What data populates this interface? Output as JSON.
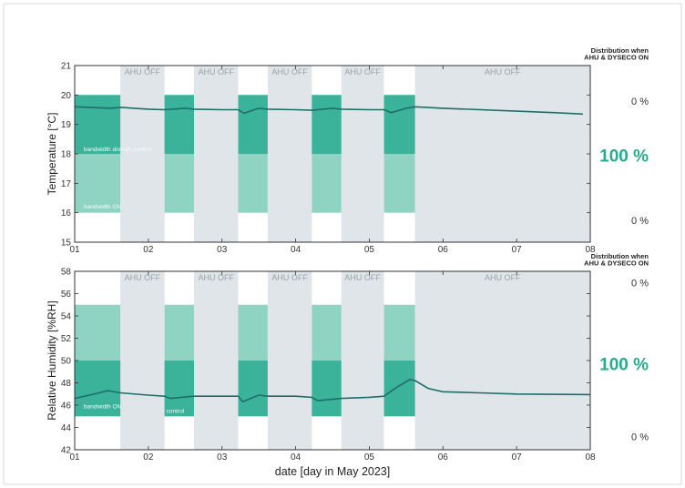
{
  "xlabel": "date [day in May 2023]",
  "chart_data": [
    {
      "type": "line",
      "ylabel": "Temperature [°C]",
      "xlim": [
        1,
        8
      ],
      "ylim": [
        15,
        21
      ],
      "x_ticks": [
        "01",
        "02",
        "03",
        "04",
        "05",
        "06",
        "07",
        "08"
      ],
      "y_ticks": [
        "15",
        "16",
        "17",
        "18",
        "19",
        "20",
        "21"
      ],
      "ahu_off_label": "AHU OFF",
      "ahu_off_periods": [
        [
          1.62,
          2.22
        ],
        [
          2.62,
          3.22
        ],
        [
          3.62,
          4.22
        ],
        [
          4.62,
          5.2
        ],
        [
          5.62,
          8.0
        ]
      ],
      "control_bands": {
        "outer": [
          16,
          20
        ],
        "inner": [
          18,
          20
        ],
        "periods": [
          [
            1.0,
            1.62
          ],
          [
            2.22,
            2.62
          ],
          [
            3.22,
            3.62
          ],
          [
            4.22,
            4.62
          ],
          [
            5.2,
            5.62
          ]
        ]
      },
      "band_labels": [
        {
          "text": "bandwidth domain control",
          "y": 18.1
        },
        {
          "text": "bandwidth ON",
          "y": 16.15
        }
      ],
      "distribution_title": [
        "Distribution when",
        "AHU & DYSECO ON"
      ],
      "distribution_values": [
        {
          "value": "0 %",
          "y": 19.8
        },
        {
          "value": "100 %",
          "y": 17.95
        },
        {
          "value": "0 %",
          "y": 15.75
        }
      ],
      "series": [
        {
          "color": "#1f6e6a",
          "x": [
            1.0,
            1.5,
            1.62,
            2.0,
            2.22,
            2.5,
            2.62,
            3.0,
            3.22,
            3.3,
            3.5,
            3.62,
            4.0,
            4.22,
            4.5,
            4.62,
            5.0,
            5.2,
            5.3,
            5.5,
            5.62,
            6.0,
            7.0,
            7.5,
            7.9
          ],
          "y": [
            19.6,
            19.55,
            19.58,
            19.52,
            19.5,
            19.55,
            19.52,
            19.5,
            19.5,
            19.38,
            19.55,
            19.52,
            19.5,
            19.48,
            19.55,
            19.52,
            19.5,
            19.5,
            19.4,
            19.55,
            19.6,
            19.55,
            19.45,
            19.4,
            19.35
          ]
        }
      ]
    },
    {
      "type": "line",
      "ylabel": "Relative Humidity [%RH]",
      "xlim": [
        1,
        8
      ],
      "ylim": [
        42,
        58
      ],
      "x_ticks": [
        "01",
        "02",
        "03",
        "04",
        "05",
        "06",
        "07",
        "08"
      ],
      "y_ticks": [
        "42",
        "44",
        "46",
        "48",
        "50",
        "52",
        "54",
        "56",
        "58"
      ],
      "ahu_off_label": "AHU OFF",
      "ahu_off_periods": [
        [
          1.62,
          2.22
        ],
        [
          2.62,
          3.22
        ],
        [
          3.62,
          4.22
        ],
        [
          4.62,
          5.2
        ],
        [
          5.62,
          8.0
        ]
      ],
      "control_bands": {
        "outer": [
          45,
          55
        ],
        "inner": [
          45,
          50
        ],
        "periods": [
          [
            1.0,
            1.62
          ],
          [
            2.22,
            2.62
          ],
          [
            3.22,
            3.62
          ],
          [
            4.22,
            4.62
          ],
          [
            5.2,
            5.62
          ]
        ]
      },
      "band_labels": [
        {
          "text": "bandwidth ON",
          "y": 45.7
        },
        {
          "text": "control",
          "y": 45.3
        }
      ],
      "distribution_title": [
        "Distribution when",
        "AHU & DYSECO ON"
      ],
      "distribution_values": [
        {
          "value": "0 %",
          "y": 57.0
        },
        {
          "value": "100 %",
          "y": 49.7
        },
        {
          "value": "0 %",
          "y": 43.2
        }
      ],
      "series": [
        {
          "color": "#1f6e6a",
          "x": [
            1.0,
            1.2,
            1.45,
            1.62,
            2.0,
            2.22,
            2.3,
            2.62,
            3.0,
            3.22,
            3.28,
            3.5,
            3.62,
            4.0,
            4.22,
            4.3,
            4.62,
            5.0,
            5.2,
            5.35,
            5.55,
            5.62,
            5.8,
            6.0,
            6.5,
            7.0,
            8.0
          ],
          "y": [
            46.6,
            46.9,
            47.3,
            47.1,
            46.9,
            46.8,
            46.6,
            46.8,
            46.8,
            46.8,
            46.3,
            46.9,
            46.8,
            46.8,
            46.7,
            46.4,
            46.6,
            46.7,
            46.8,
            47.5,
            48.3,
            48.2,
            47.5,
            47.2,
            47.1,
            47.0,
            46.95
          ]
        }
      ]
    }
  ]
}
